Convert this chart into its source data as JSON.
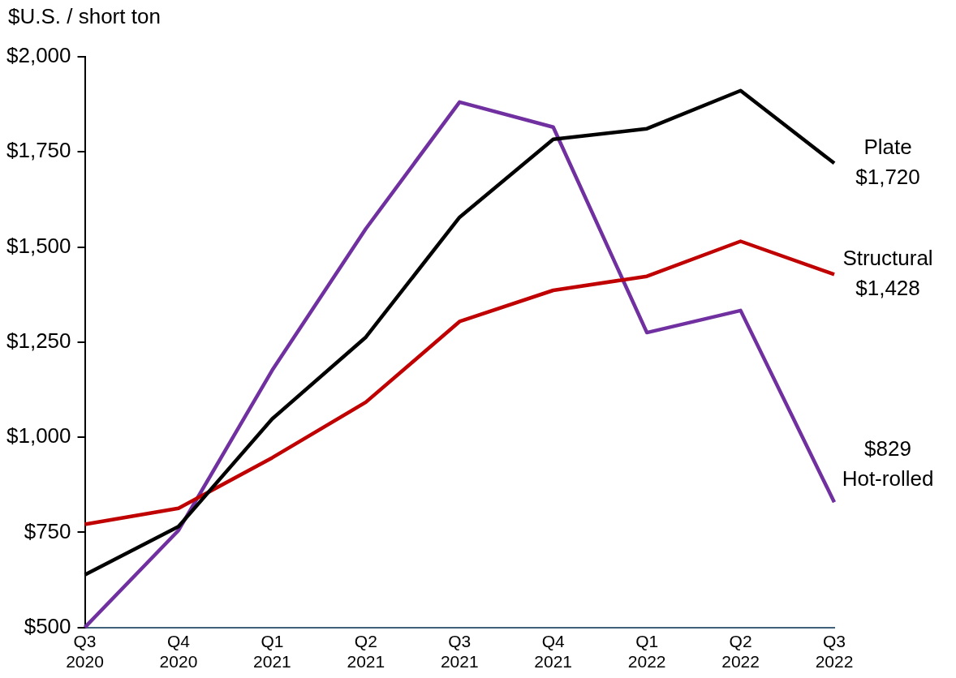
{
  "chart_data": {
    "type": "line",
    "ylabel": "$U.S. / short ton",
    "categories": [
      "Q3 2020",
      "Q4 2020",
      "Q1 2021",
      "Q2 2021",
      "Q3 2021",
      "Q4 2021",
      "Q1 2022",
      "Q2 2022",
      "Q3 2022"
    ],
    "series": [
      {
        "name": "Plate",
        "color": "#000000",
        "values": [
          638,
          765,
          1048,
          1263,
          1578,
          1783,
          1811,
          1911,
          1720
        ],
        "value_labels": [
          null,
          null,
          null,
          null,
          null,
          null,
          null,
          null,
          "$1,720"
        ]
      },
      {
        "name": "Structural",
        "color": "#c00000",
        "values": [
          771,
          813,
          946,
          1092,
          1304,
          1386,
          1423,
          1515,
          1428
        ],
        "value_labels": [
          null,
          null,
          null,
          null,
          null,
          null,
          null,
          null,
          "$1,428"
        ]
      },
      {
        "name": "Hot-rolled",
        "color": "#7030a0",
        "values": [
          500,
          755,
          1176,
          1548,
          1881,
          1815,
          1275,
          1333,
          829
        ],
        "value_labels": [
          null,
          null,
          null,
          null,
          null,
          null,
          null,
          null,
          "$829"
        ]
      }
    ],
    "ylim": [
      500,
      2000
    ],
    "yticks": [
      {
        "value": 500,
        "label": "$500"
      },
      {
        "value": 750,
        "label": "$750"
      },
      {
        "value": 1000,
        "label": "$1,000"
      },
      {
        "value": 1250,
        "label": "$1,250"
      },
      {
        "value": 1500,
        "label": "$1,500"
      },
      {
        "value": 1750,
        "label": "$1,750"
      },
      {
        "value": 2000,
        "label": "$2,000"
      }
    ],
    "grid": false,
    "legend": false,
    "marker": "none",
    "line_style": "solid"
  }
}
